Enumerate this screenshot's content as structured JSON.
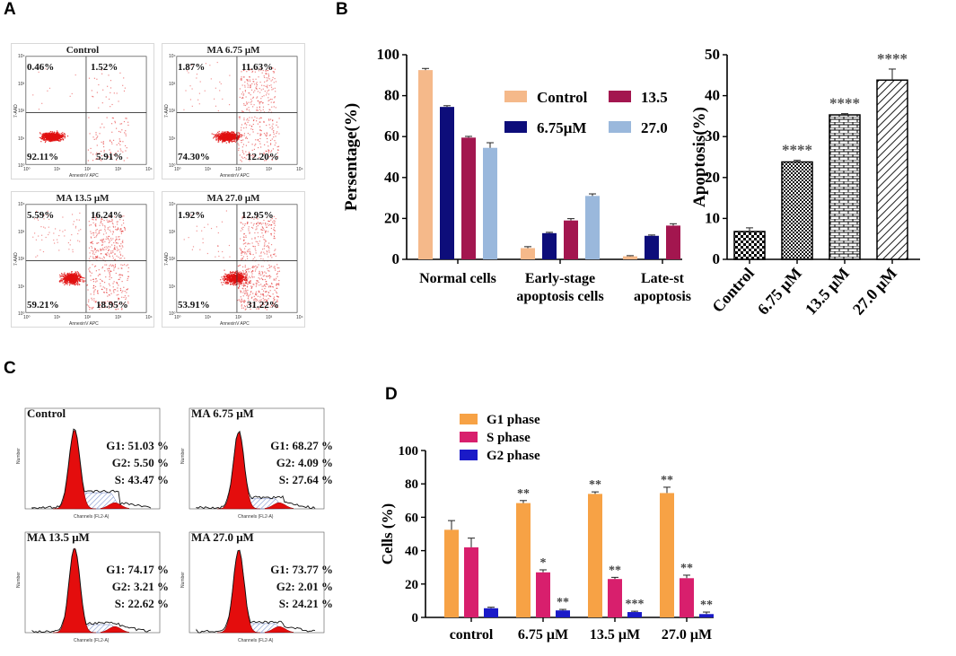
{
  "panel_labels": {
    "a": "A",
    "b": "B",
    "c": "C",
    "d": "D"
  },
  "colors": {
    "flow_dots": "#e01010",
    "control": "#f5b98a",
    "dose675": "#0d0d7a",
    "dose135": "#a3164f",
    "dose270": "#9ab8dc",
    "g1": "#f7a245",
    "s": "#d81f6d",
    "g2": "#1a1ac8",
    "hist_red": "#e40d0d",
    "hist_hatch": "#8fa3d6"
  },
  "flow": {
    "x_axis_label": "AnnexinV APC",
    "y_axis_label": "7-AAD",
    "tick_labels": [
      "10⁰",
      "10¹",
      "10²",
      "10³",
      "10⁴"
    ],
    "panels": [
      {
        "title": "Control",
        "ul": "0.46%",
        "ur": "1.52%",
        "ll": "92.11%",
        "lr": "5.91%"
      },
      {
        "title": "MA 6.75 μM",
        "ul": "1.87%",
        "ur": "11.63%",
        "ll": "74.30%",
        "lr": "12.20%"
      },
      {
        "title": "MA 13.5 μM",
        "ul": "5.59%",
        "ur": "16.24%",
        "ll": "59.21%",
        "lr": "18.95%"
      },
      {
        "title": "MA 27.0 μM",
        "ul": "1.92%",
        "ur": "12.95%",
        "ll": "53.91%",
        "lr": "31.22%"
      }
    ]
  },
  "cellcycle": {
    "x_axis_label": "Channels (FL2-A)",
    "y_axis_label": "Number",
    "panels": [
      {
        "title": "Control",
        "g1": "G1: 51.03 %",
        "g2": "G2: 5.50 %",
        "s": "S: 43.47 %"
      },
      {
        "title": "MA 6.75 μM",
        "g1": "G1: 68.27 %",
        "g2": "G2: 4.09 %",
        "s": "S: 27.64 %"
      },
      {
        "title": "MA 13.5 μM",
        "g1": "G1: 74.17 %",
        "g2": "G2: 3.21 %",
        "s": "S: 22.62 %"
      },
      {
        "title": "MA 27.0 μM",
        "g1": "G1: 73.77 %",
        "g2": "G2: 2.01 %",
        "s": "S: 24.21 %"
      }
    ]
  },
  "chart_data": [
    {
      "id": "B-left",
      "type": "bar",
      "title": "",
      "ylabel": "Persentage(%)",
      "ylim": [
        0,
        100
      ],
      "yticks": [
        0,
        20,
        40,
        60,
        80,
        100
      ],
      "categories": [
        "Normal cells",
        "Early-stage apoptosis cells",
        "Late-stage apoptosis cells"
      ],
      "category_lines": [
        [
          "Normal cells"
        ],
        [
          "Early-stage",
          "apoptosis cells"
        ],
        [
          "Late-st",
          "apoptosis"
        ]
      ],
      "legend": [
        "Control",
        "13.5",
        "6.75μM",
        "27.0"
      ],
      "series": [
        {
          "name": "Control",
          "color": "#f5b98a",
          "values": [
            92.5,
            5.5,
            1.5
          ],
          "errors": [
            0.8,
            0.7,
            0.3
          ]
        },
        {
          "name": "6.75μM",
          "color": "#0d0d7a",
          "values": [
            74.5,
            12.8,
            11.5
          ],
          "errors": [
            0.6,
            0.4,
            0.4
          ]
        },
        {
          "name": "13.5μM",
          "color": "#a3164f",
          "values": [
            59.5,
            19,
            16.5
          ],
          "errors": [
            0.6,
            0.9,
            0.9
          ]
        },
        {
          "name": "27.0μM",
          "color": "#9ab8dc",
          "values": [
            54.5,
            31,
            null
          ],
          "errors": [
            2.5,
            1.0,
            null
          ]
        }
      ]
    },
    {
      "id": "B-right",
      "type": "bar",
      "ylabel": "Apoptosis(%)",
      "ylim": [
        0,
        50
      ],
      "yticks": [
        0,
        10,
        20,
        30,
        40,
        50
      ],
      "categories": [
        "Control",
        "6.75 μM",
        "13.5 μM",
        "27.0 μM"
      ],
      "values": [
        6.8,
        23.8,
        35.3,
        43.8
      ],
      "errors": [
        0.9,
        0.4,
        0.3,
        2.7
      ],
      "significance": [
        "",
        "****",
        "****",
        "****"
      ]
    },
    {
      "id": "D",
      "type": "bar",
      "ylabel": "Cells (%)",
      "ylim": [
        0,
        100
      ],
      "yticks": [
        0,
        20,
        40,
        60,
        80,
        100
      ],
      "categories": [
        "control",
        "6.75 μM",
        "13.5 μM",
        "27.0 μM"
      ],
      "legend": [
        "G1 phase",
        "S phase",
        "G2 phase"
      ],
      "series": [
        {
          "name": "G1 phase",
          "color": "#f7a245",
          "values": [
            52.5,
            68.5,
            74,
            74.5
          ],
          "errors": [
            5.5,
            1.5,
            1.2,
            3.5
          ],
          "sig": [
            "",
            "**",
            "**",
            "**"
          ]
        },
        {
          "name": "S phase",
          "color": "#d81f6d",
          "values": [
            42,
            27,
            23,
            23.5
          ],
          "errors": [
            5.5,
            1.5,
            1.0,
            1.8
          ],
          "sig": [
            "",
            "*",
            "**",
            "**"
          ]
        },
        {
          "name": "G2 phase",
          "color": "#1a1ac8",
          "values": [
            5.5,
            4.2,
            3.2,
            2.0
          ],
          "errors": [
            0.6,
            0.6,
            0.5,
            1.2
          ],
          "sig": [
            "",
            "**",
            "***",
            "**"
          ]
        }
      ]
    }
  ]
}
